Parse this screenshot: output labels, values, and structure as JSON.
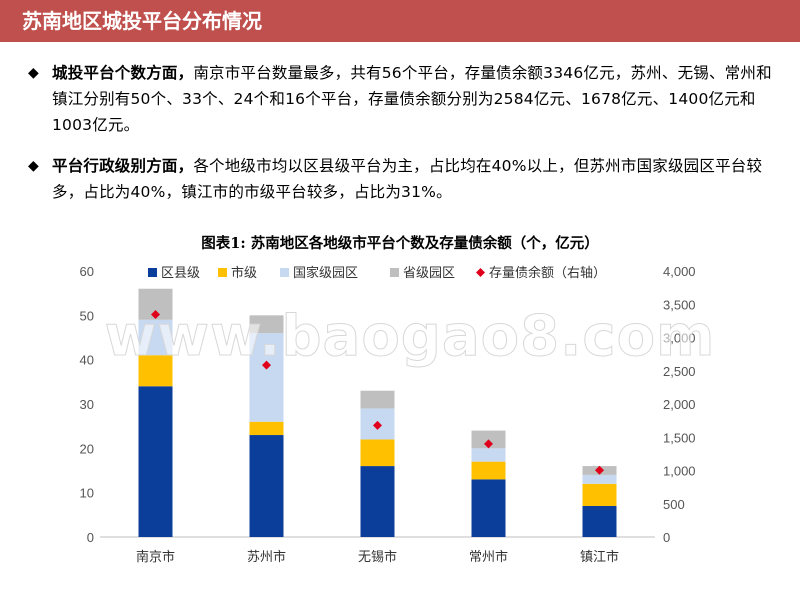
{
  "page": {
    "title": "苏南地区城投平台分布情况",
    "bullets": [
      {
        "marker": "◆",
        "lead": "城投平台个数方面，",
        "text": "南京市平台数量最多，共有56个平台，存量债余额3346亿元，苏州、无锡、常州和镇江分别有50个、33个、24个和16个平台，存量债余额分别为2584亿元、1678亿元、1400亿元和1003亿元。"
      },
      {
        "marker": "◆",
        "lead": "平台行政级别方面，",
        "text": "各个地级市均以区县级平台为主，占比均在40%以上，但苏州市国家级园区平台较多，占比为40%，镇江市的市级平台较多，占比为31%。"
      }
    ],
    "watermark": "www.baogao8.com"
  },
  "chart_data": {
    "type": "bar",
    "stacked": true,
    "title": "图表1: 苏南地区各地级市平台个数及存量债余额（个，亿元）",
    "categories": [
      "南京市",
      "苏州市",
      "无锡市",
      "常州市",
      "镇江市"
    ],
    "series": [
      {
        "name": "区县级",
        "color": "#0b3e9a",
        "values": [
          34,
          23,
          16,
          13,
          7
        ]
      },
      {
        "name": "市级",
        "color": "#ffc000",
        "values": [
          7,
          3,
          6,
          4,
          5
        ]
      },
      {
        "name": "国家级园区",
        "color": "#c6d9f1",
        "values": [
          8,
          20,
          7,
          3,
          2
        ]
      },
      {
        "name": "省级园区",
        "color": "#bfbfbf",
        "values": [
          7,
          4,
          4,
          4,
          2
        ]
      }
    ],
    "secondary_series": {
      "name": "存量债余额（右轴）",
      "color": "#e0001b",
      "marker": "diamond",
      "values": [
        3346,
        2584,
        1678,
        1400,
        1003
      ]
    },
    "ylim": [
      0,
      60
    ],
    "yticks": [
      0,
      10,
      20,
      30,
      40,
      50,
      60
    ],
    "y2lim": [
      0,
      4000
    ],
    "y2ticks": [
      0,
      500,
      1000,
      1500,
      2000,
      2500,
      3000,
      3500,
      4000
    ],
    "y2tick_labels": [
      "0",
      "500",
      "1,000",
      "1,500",
      "2,000",
      "2,500",
      "3,000",
      "3,500",
      "4,000"
    ],
    "legend_position": "top"
  }
}
